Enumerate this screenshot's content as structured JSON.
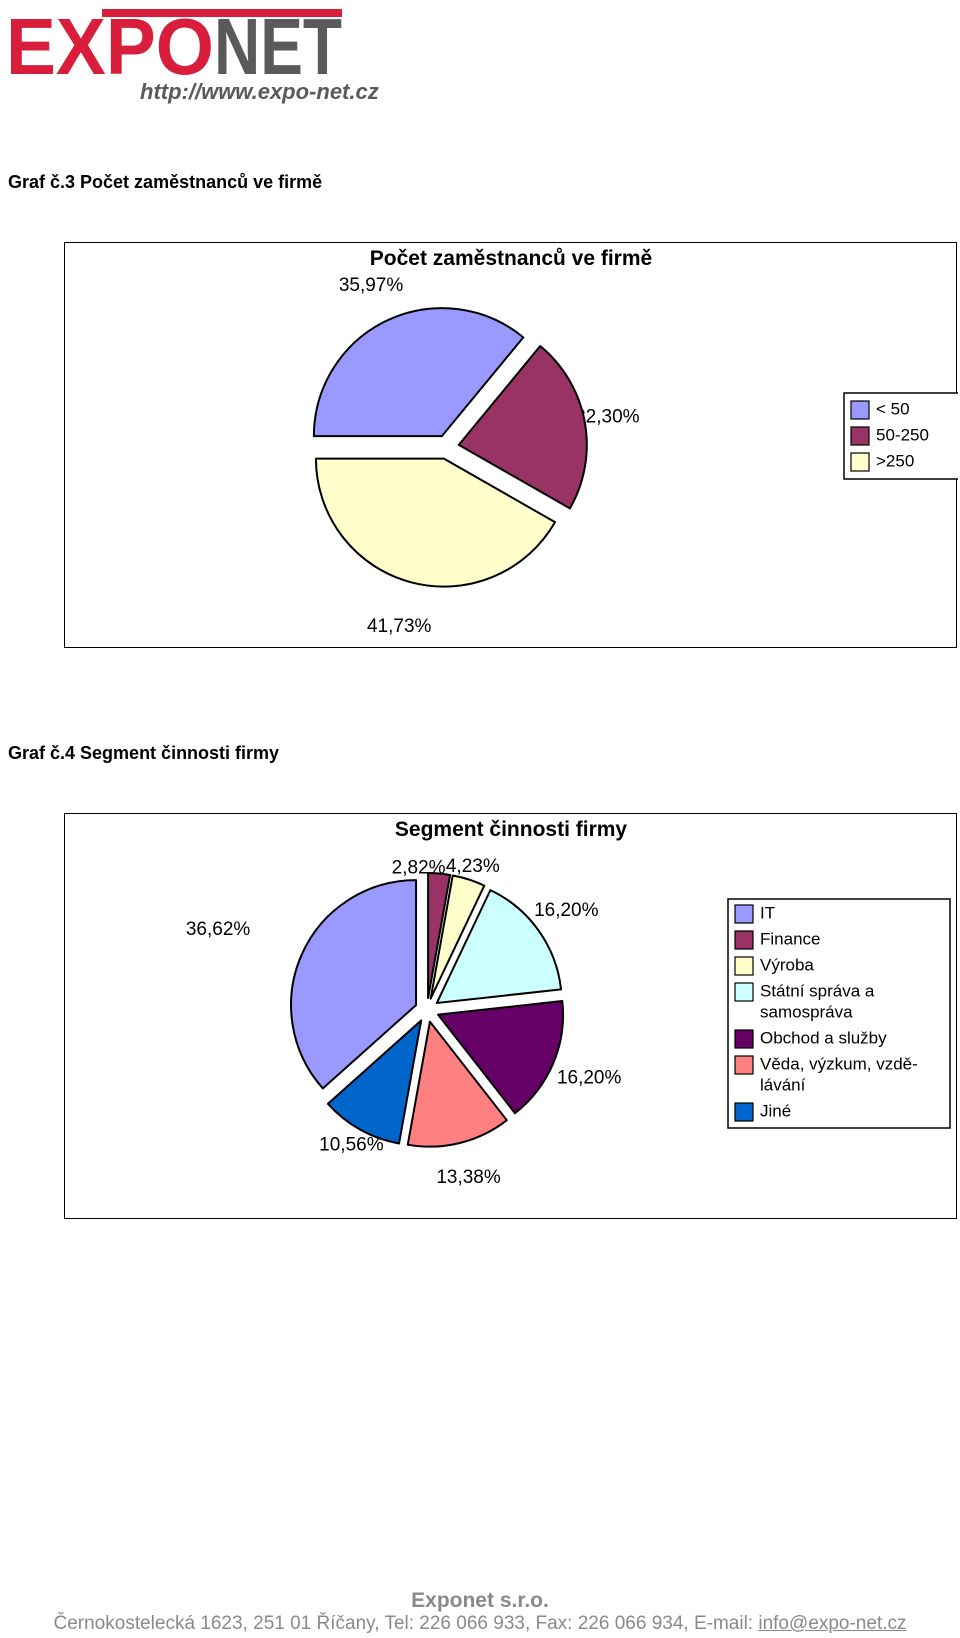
{
  "header": {
    "logo_text": "EXPONET",
    "logo_url": "http://www.expo-net.cz",
    "brand_color": "#d81e3a",
    "logo_gray": "#5a5a5a"
  },
  "captions": [
    "Graf č.3 Počet zaměstnanců ve firmě",
    "Graf č.4 Segment činnosti firmy"
  ],
  "chart_data": [
    {
      "type": "pie",
      "title": "Počet zaměstnanců ve firmě",
      "categories": [
        "< 50",
        "50-250",
        ">250"
      ],
      "values": [
        35.97,
        22.3,
        41.73
      ],
      "data_labels": [
        "35,97%",
        "22,30%",
        "41,73%"
      ],
      "colors": [
        "#9999ff",
        "#993366",
        "#ffffcc"
      ],
      "legend_position": "right",
      "exploded": true
    },
    {
      "type": "pie",
      "title": "Segment činnosti firmy",
      "categories": [
        "IT",
        "Finance",
        "Výroba",
        "Státní správa a samospráva",
        "Obchod a služby",
        "Věda, výzkum, vzdělávání",
        "Jiné"
      ],
      "legend_lines": [
        [
          "IT"
        ],
        [
          "Finance"
        ],
        [
          "Výroba"
        ],
        [
          "Státní správa a",
          "samospráva"
        ],
        [
          "Obchod a služby"
        ],
        [
          "Věda, výzkum, vzdě-",
          "lávání"
        ],
        [
          "Jiné"
        ]
      ],
      "values": [
        36.62,
        2.82,
        4.23,
        16.2,
        16.2,
        13.38,
        10.56
      ],
      "data_labels": [
        "36,62%",
        "2,82%",
        "4,23%",
        "16,20%",
        "16,20%",
        "13,38%",
        "10,56%"
      ],
      "colors": [
        "#9999ff",
        "#993366",
        "#ffffcc",
        "#ccffff",
        "#660066",
        "#ff8080",
        "#0066cc"
      ],
      "legend_position": "right",
      "exploded": true
    }
  ],
  "footer": {
    "company": "Exponet s.r.o.",
    "address": "Černokostelecká 1623, 251 01 Říčany, Tel: 226 066 933, Fax: 226 066 934, E-mail: ",
    "email": "info@expo-net.cz"
  }
}
